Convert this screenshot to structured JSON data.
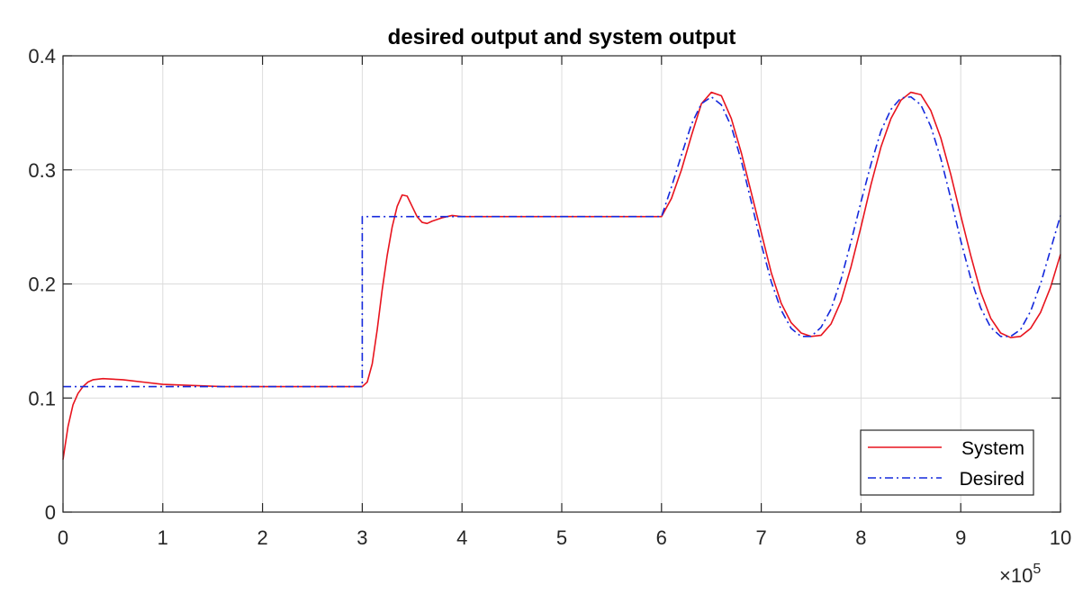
{
  "chart_data": {
    "type": "line",
    "title": "desired output and system output",
    "xlabel": "",
    "ylabel": "",
    "xlim": [
      0,
      1000000
    ],
    "ylim": [
      0,
      0.4
    ],
    "x_ticks": [
      0,
      100000,
      200000,
      300000,
      400000,
      500000,
      600000,
      700000,
      800000,
      900000,
      1000000
    ],
    "x_tick_labels": [
      "0",
      "1",
      "2",
      "3",
      "4",
      "5",
      "6",
      "7",
      "8",
      "9",
      "10"
    ],
    "x_exponent_label": {
      "base": "×10",
      "exponent": "5"
    },
    "y_ticks": [
      0,
      0.1,
      0.2,
      0.3,
      0.4
    ],
    "y_tick_labels": [
      "0",
      "0.1",
      "0.2",
      "0.3",
      "0.4"
    ],
    "grid": true,
    "legend_position": "bottom-right",
    "series": [
      {
        "name": "System",
        "color": "#e8141e",
        "style": "solid",
        "points": [
          [
            0,
            0.046
          ],
          [
            5000,
            0.075
          ],
          [
            10000,
            0.094
          ],
          [
            15000,
            0.104
          ],
          [
            20000,
            0.11
          ],
          [
            25000,
            0.114
          ],
          [
            30000,
            0.116
          ],
          [
            40000,
            0.117
          ],
          [
            60000,
            0.116
          ],
          [
            80000,
            0.114
          ],
          [
            100000,
            0.112
          ],
          [
            130000,
            0.111
          ],
          [
            160000,
            0.11
          ],
          [
            200000,
            0.11
          ],
          [
            250000,
            0.11
          ],
          [
            300000,
            0.11
          ],
          [
            305000,
            0.114
          ],
          [
            310000,
            0.13
          ],
          [
            315000,
            0.16
          ],
          [
            320000,
            0.195
          ],
          [
            325000,
            0.225
          ],
          [
            330000,
            0.25
          ],
          [
            335000,
            0.268
          ],
          [
            340000,
            0.278
          ],
          [
            345000,
            0.277
          ],
          [
            350000,
            0.268
          ],
          [
            355000,
            0.259
          ],
          [
            360000,
            0.254
          ],
          [
            365000,
            0.253
          ],
          [
            370000,
            0.255
          ],
          [
            380000,
            0.258
          ],
          [
            390000,
            0.26
          ],
          [
            400000,
            0.259
          ],
          [
            420000,
            0.259
          ],
          [
            450000,
            0.259
          ],
          [
            500000,
            0.259
          ],
          [
            550000,
            0.259
          ],
          [
            600000,
            0.259
          ],
          [
            610000,
            0.275
          ],
          [
            620000,
            0.3
          ],
          [
            630000,
            0.33
          ],
          [
            640000,
            0.358
          ],
          [
            650000,
            0.368
          ],
          [
            660000,
            0.365
          ],
          [
            670000,
            0.345
          ],
          [
            680000,
            0.315
          ],
          [
            690000,
            0.28
          ],
          [
            700000,
            0.245
          ],
          [
            710000,
            0.21
          ],
          [
            720000,
            0.183
          ],
          [
            730000,
            0.166
          ],
          [
            740000,
            0.157
          ],
          [
            750000,
            0.154
          ],
          [
            760000,
            0.155
          ],
          [
            770000,
            0.165
          ],
          [
            780000,
            0.185
          ],
          [
            790000,
            0.215
          ],
          [
            800000,
            0.25
          ],
          [
            810000,
            0.287
          ],
          [
            820000,
            0.32
          ],
          [
            830000,
            0.345
          ],
          [
            840000,
            0.361
          ],
          [
            850000,
            0.368
          ],
          [
            860000,
            0.366
          ],
          [
            870000,
            0.352
          ],
          [
            880000,
            0.328
          ],
          [
            890000,
            0.296
          ],
          [
            900000,
            0.26
          ],
          [
            910000,
            0.225
          ],
          [
            920000,
            0.193
          ],
          [
            930000,
            0.17
          ],
          [
            940000,
            0.157
          ],
          [
            950000,
            0.153
          ],
          [
            960000,
            0.154
          ],
          [
            970000,
            0.161
          ],
          [
            980000,
            0.175
          ],
          [
            990000,
            0.197
          ],
          [
            1000000,
            0.226
          ]
        ]
      },
      {
        "name": "Desired",
        "color": "#1428dc",
        "style": "dashdot",
        "points": [
          [
            0,
            0.11
          ],
          [
            300000,
            0.11
          ],
          [
            300000,
            0.259
          ],
          [
            600000,
            0.259
          ],
          [
            610000,
            0.285
          ],
          [
            620000,
            0.313
          ],
          [
            630000,
            0.34
          ],
          [
            640000,
            0.358
          ],
          [
            650000,
            0.364
          ],
          [
            660000,
            0.357
          ],
          [
            670000,
            0.338
          ],
          [
            680000,
            0.308
          ],
          [
            690000,
            0.272
          ],
          [
            700000,
            0.235
          ],
          [
            710000,
            0.202
          ],
          [
            720000,
            0.177
          ],
          [
            730000,
            0.161
          ],
          [
            740000,
            0.154
          ],
          [
            750000,
            0.154
          ],
          [
            760000,
            0.162
          ],
          [
            770000,
            0.178
          ],
          [
            780000,
            0.204
          ],
          [
            790000,
            0.237
          ],
          [
            800000,
            0.272
          ],
          [
            810000,
            0.305
          ],
          [
            820000,
            0.334
          ],
          [
            830000,
            0.353
          ],
          [
            840000,
            0.363
          ],
          [
            850000,
            0.364
          ],
          [
            860000,
            0.357
          ],
          [
            870000,
            0.338
          ],
          [
            880000,
            0.31
          ],
          [
            890000,
            0.275
          ],
          [
            900000,
            0.238
          ],
          [
            910000,
            0.205
          ],
          [
            920000,
            0.179
          ],
          [
            930000,
            0.162
          ],
          [
            940000,
            0.154
          ],
          [
            950000,
            0.154
          ],
          [
            960000,
            0.16
          ],
          [
            970000,
            0.176
          ],
          [
            980000,
            0.2
          ],
          [
            990000,
            0.23
          ],
          [
            1000000,
            0.26
          ]
        ]
      }
    ]
  }
}
